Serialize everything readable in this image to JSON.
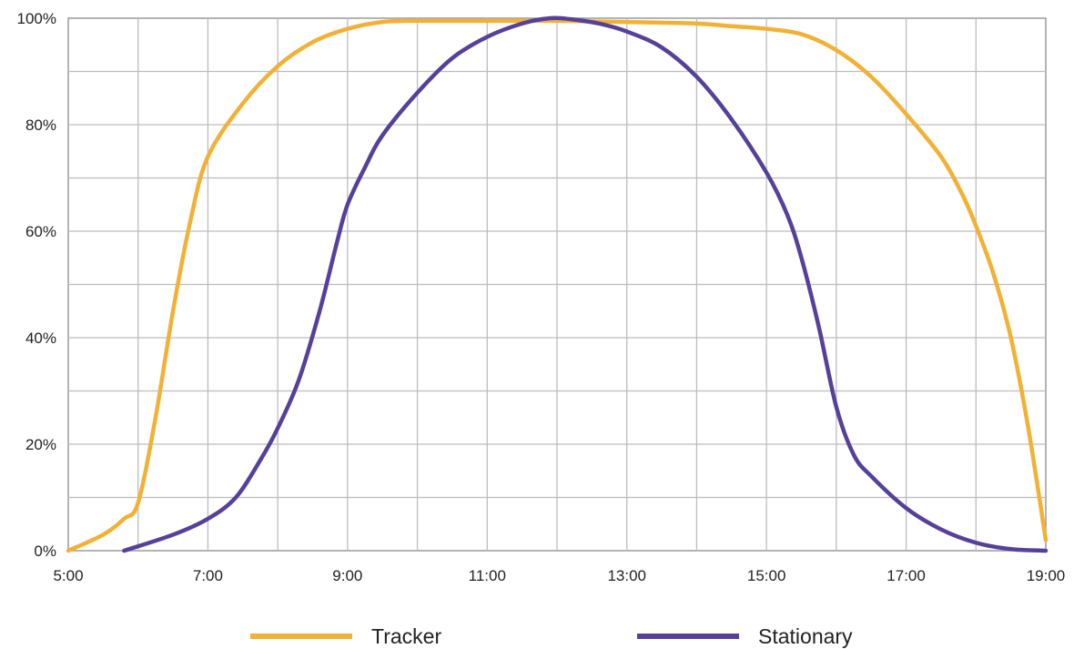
{
  "chart_data": {
    "type": "line",
    "title": "",
    "xlabel": "",
    "ylabel": "",
    "x_tick_labels": [
      "5:00",
      "7:00",
      "9:00",
      "11:00",
      "13:00",
      "15:00",
      "17:00",
      "19:00"
    ],
    "y_tick_labels": [
      "0%",
      "20%",
      "40%",
      "60%",
      "80%",
      "100%"
    ],
    "xlim": [
      5,
      19
    ],
    "ylim": [
      0,
      100
    ],
    "grid": true,
    "grid_x_step_hours": 1,
    "grid_y_step_percent": 10,
    "legend_position": "bottom",
    "series": [
      {
        "name": "Tracker",
        "color": "#F2B134",
        "points": [
          [
            5.0,
            0
          ],
          [
            5.5,
            3
          ],
          [
            5.8,
            6
          ],
          [
            6.0,
            9
          ],
          [
            6.25,
            25
          ],
          [
            6.5,
            45
          ],
          [
            6.75,
            62
          ],
          [
            7.0,
            74
          ],
          [
            7.5,
            84
          ],
          [
            8.0,
            91
          ],
          [
            8.5,
            95.5
          ],
          [
            9.0,
            98
          ],
          [
            9.5,
            99.3
          ],
          [
            10.0,
            99.5
          ],
          [
            11.0,
            99.5
          ],
          [
            12.0,
            99.5
          ],
          [
            13.0,
            99.3
          ],
          [
            14.0,
            99
          ],
          [
            14.5,
            98.5
          ],
          [
            15.0,
            98
          ],
          [
            15.5,
            97
          ],
          [
            16.0,
            94
          ],
          [
            16.5,
            89
          ],
          [
            17.0,
            82
          ],
          [
            17.5,
            74
          ],
          [
            17.8,
            67
          ],
          [
            18.0,
            61
          ],
          [
            18.25,
            52
          ],
          [
            18.5,
            40
          ],
          [
            18.75,
            23
          ],
          [
            19.0,
            2
          ]
        ]
      },
      {
        "name": "Stationary",
        "color": "#56409A",
        "points": [
          [
            5.8,
            0
          ],
          [
            6.5,
            3
          ],
          [
            7.0,
            6
          ],
          [
            7.4,
            10
          ],
          [
            7.75,
            17
          ],
          [
            8.0,
            23
          ],
          [
            8.3,
            32
          ],
          [
            8.6,
            45
          ],
          [
            8.85,
            58
          ],
          [
            9.0,
            65
          ],
          [
            9.25,
            72
          ],
          [
            9.5,
            78
          ],
          [
            10.0,
            86
          ],
          [
            10.5,
            92.5
          ],
          [
            11.0,
            96.5
          ],
          [
            11.5,
            99
          ],
          [
            11.9,
            100
          ],
          [
            12.2,
            99.8
          ],
          [
            12.6,
            99
          ],
          [
            13.0,
            97.5
          ],
          [
            13.5,
            94.5
          ],
          [
            14.0,
            89
          ],
          [
            14.5,
            81
          ],
          [
            15.0,
            71
          ],
          [
            15.3,
            63
          ],
          [
            15.5,
            55
          ],
          [
            15.75,
            42
          ],
          [
            16.0,
            27
          ],
          [
            16.25,
            18
          ],
          [
            16.5,
            14
          ],
          [
            17.0,
            8
          ],
          [
            17.5,
            4
          ],
          [
            18.0,
            1.5
          ],
          [
            18.5,
            0.3
          ],
          [
            19.0,
            0
          ]
        ]
      }
    ]
  }
}
